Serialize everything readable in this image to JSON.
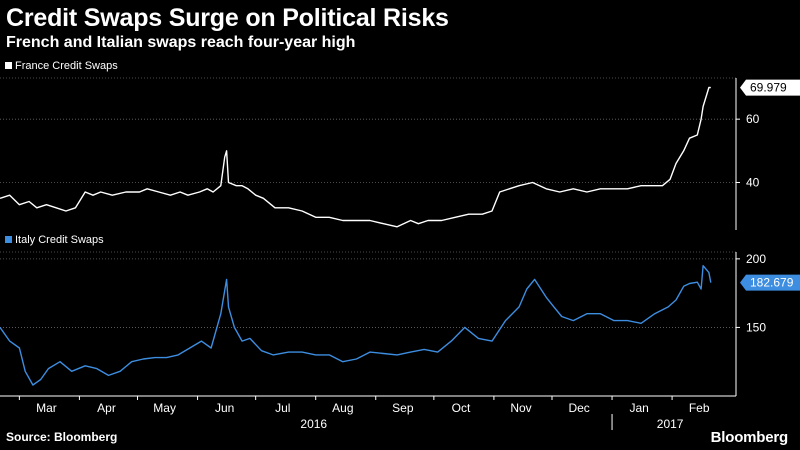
{
  "header": {
    "title": "Credit Swaps Surge on Political Risks",
    "subtitle": "French and Italian swaps reach four-year high"
  },
  "footer": {
    "source": "Source: Bloomberg",
    "brand": "Bloomberg"
  },
  "colors": {
    "background": "#000000",
    "france": "#ffffff",
    "italy": "#3d8de0",
    "grid": "#666666"
  },
  "chart_data": [
    {
      "type": "line",
      "title": "",
      "series": [
        {
          "name": "France Credit Swaps",
          "last_value_label": "69.979",
          "x": [
            "2016-02-20",
            "2016-02-25",
            "2016-03-01",
            "2016-03-06",
            "2016-03-10",
            "2016-03-15",
            "2016-03-20",
            "2016-03-25",
            "2016-03-30",
            "2016-04-04",
            "2016-04-08",
            "2016-04-12",
            "2016-04-18",
            "2016-04-25",
            "2016-05-02",
            "2016-05-06",
            "2016-05-12",
            "2016-05-18",
            "2016-05-23",
            "2016-05-27",
            "2016-06-02",
            "2016-06-06",
            "2016-06-09",
            "2016-06-13",
            "2016-06-15",
            "2016-06-16",
            "2016-06-17",
            "2016-06-21",
            "2016-06-23",
            "2016-06-24",
            "2016-06-27",
            "2016-07-01",
            "2016-07-05",
            "2016-07-11",
            "2016-07-18",
            "2016-07-25",
            "2016-08-01",
            "2016-08-08",
            "2016-08-15",
            "2016-08-22",
            "2016-08-29",
            "2016-09-05",
            "2016-09-12",
            "2016-09-19",
            "2016-09-23",
            "2016-09-28",
            "2016-10-05",
            "2016-10-12",
            "2016-10-19",
            "2016-10-26",
            "2016-10-31",
            "2016-11-04",
            "2016-11-09",
            "2016-11-14",
            "2016-11-21",
            "2016-11-28",
            "2016-12-05",
            "2016-12-12",
            "2016-12-19",
            "2016-12-26",
            "2017-01-02",
            "2017-01-09",
            "2017-01-16",
            "2017-01-23",
            "2017-01-27",
            "2017-01-31",
            "2017-02-03",
            "2017-02-07",
            "2017-02-10",
            "2017-02-14",
            "2017-02-16",
            "2017-02-17",
            "2017-02-20",
            "2017-02-21"
          ],
          "values": [
            35,
            36,
            33,
            34,
            32,
            33,
            32,
            31,
            32,
            37,
            36,
            37,
            36,
            37,
            37,
            38,
            37,
            36,
            37,
            36,
            37,
            38,
            37,
            39,
            48,
            50,
            40,
            39,
            39,
            39,
            38,
            36,
            35,
            32,
            32,
            31,
            29,
            29,
            28,
            28,
            28,
            27,
            26,
            28,
            27,
            28,
            28,
            29,
            30,
            30,
            31,
            37,
            38,
            39,
            40,
            38,
            37,
            38,
            37,
            38,
            38,
            38,
            39,
            39,
            39,
            41,
            46,
            50,
            54,
            55,
            60,
            64,
            70,
            69.979
          ]
        }
      ],
      "yticks": [
        40,
        60
      ],
      "ylim": [
        25,
        73
      ]
    },
    {
      "type": "line",
      "title": "",
      "series": [
        {
          "name": "Italy Credit Swaps",
          "last_value_label": "182.679",
          "x": [
            "2016-02-20",
            "2016-02-25",
            "2016-03-01",
            "2016-03-04",
            "2016-03-08",
            "2016-03-12",
            "2016-03-16",
            "2016-03-22",
            "2016-03-28",
            "2016-04-04",
            "2016-04-10",
            "2016-04-16",
            "2016-04-22",
            "2016-04-28",
            "2016-05-04",
            "2016-05-10",
            "2016-05-16",
            "2016-05-22",
            "2016-05-28",
            "2016-06-03",
            "2016-06-08",
            "2016-06-13",
            "2016-06-16",
            "2016-06-17",
            "2016-06-20",
            "2016-06-24",
            "2016-06-28",
            "2016-07-04",
            "2016-07-10",
            "2016-07-18",
            "2016-07-25",
            "2016-08-01",
            "2016-08-08",
            "2016-08-15",
            "2016-08-22",
            "2016-08-29",
            "2016-09-05",
            "2016-09-12",
            "2016-09-19",
            "2016-09-26",
            "2016-10-03",
            "2016-10-10",
            "2016-10-17",
            "2016-10-24",
            "2016-10-31",
            "2016-11-07",
            "2016-11-14",
            "2016-11-18",
            "2016-11-22",
            "2016-11-28",
            "2016-12-02",
            "2016-12-06",
            "2016-12-12",
            "2016-12-19",
            "2016-12-26",
            "2017-01-02",
            "2017-01-09",
            "2017-01-16",
            "2017-01-23",
            "2017-01-30",
            "2017-02-03",
            "2017-02-07",
            "2017-02-10",
            "2017-02-14",
            "2017-02-16",
            "2017-02-17",
            "2017-02-20",
            "2017-02-21"
          ],
          "values": [
            150,
            140,
            135,
            118,
            108,
            112,
            120,
            125,
            118,
            122,
            120,
            115,
            118,
            125,
            127,
            128,
            128,
            130,
            135,
            140,
            135,
            160,
            185,
            165,
            150,
            140,
            142,
            133,
            130,
            132,
            132,
            130,
            130,
            125,
            127,
            132,
            131,
            130,
            132,
            134,
            132,
            140,
            150,
            142,
            140,
            155,
            165,
            178,
            185,
            172,
            165,
            158,
            155,
            160,
            160,
            155,
            155,
            153,
            160,
            165,
            170,
            180,
            182,
            183,
            178,
            195,
            190,
            182.679
          ]
        }
      ],
      "yticks": [
        150,
        200
      ],
      "ylim": [
        100,
        205
      ]
    }
  ],
  "xaxis": {
    "month_labels": [
      "Mar",
      "Apr",
      "May",
      "Jun",
      "Jul",
      "Aug",
      "Sep",
      "Oct",
      "Nov",
      "Dec",
      "Jan",
      "Feb"
    ],
    "month_dates": [
      "2016-03-15",
      "2016-04-15",
      "2016-05-15",
      "2016-06-15",
      "2016-07-15",
      "2016-08-15",
      "2016-09-15",
      "2016-10-15",
      "2016-11-15",
      "2016-12-15",
      "2017-01-15",
      "2017-02-15"
    ],
    "year_labels": [
      "2016",
      "2017"
    ],
    "year_dates": [
      "2016-07-31",
      "2017-01-31"
    ],
    "xlim": [
      "2016-02-20",
      "2017-03-06"
    ]
  }
}
